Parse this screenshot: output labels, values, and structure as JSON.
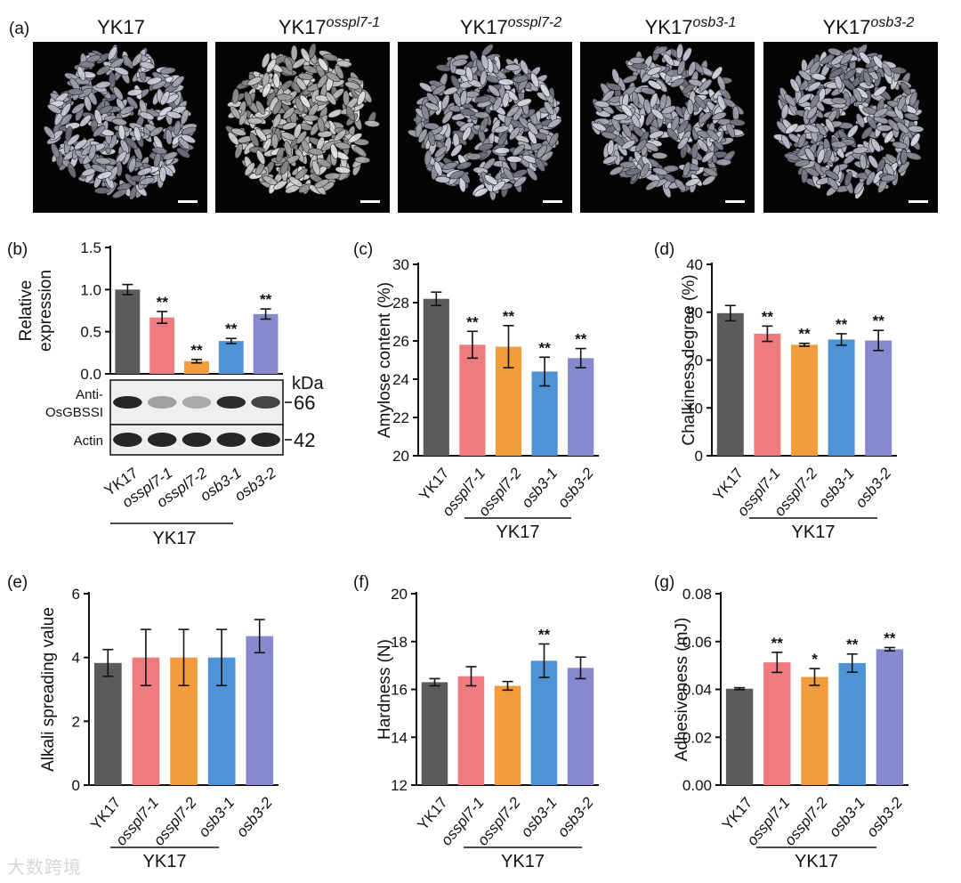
{
  "panel_a": {
    "label": "(a)",
    "scale_bar_color": "#ffffff",
    "images": [
      {
        "title": "YK17",
        "superscript": ""
      },
      {
        "title": "YK17",
        "superscript": "osspl7-1"
      },
      {
        "title": "YK17",
        "superscript": "osspl7-2"
      },
      {
        "title": "YK17",
        "superscript": "osb3-1"
      },
      {
        "title": "YK17",
        "superscript": "osb3-2"
      }
    ]
  },
  "colors": {
    "YK17": "#5b5b5b",
    "osspl7-1": "#ee7b80",
    "osspl7-2": "#f39c3e",
    "osb3-1": "#4f93d7",
    "osb3-2": "#8789cf"
  },
  "group_label": "YK17",
  "western": {
    "kda_label": "kDa",
    "rows": [
      {
        "label": "Anti-\nOsGBSSI",
        "size": "66",
        "intensity": [
          0.95,
          0.35,
          0.3,
          0.92,
          0.8
        ]
      },
      {
        "label": "Actin",
        "size": "42",
        "intensity": [
          0.95,
          0.95,
          0.95,
          0.95,
          0.95
        ]
      }
    ]
  },
  "chart_data": [
    {
      "id": "b",
      "label": "(b)",
      "type": "bar",
      "categories": [
        "YK17",
        "osspl7-1",
        "osspl7-2",
        "osb3-1",
        "osb3-2"
      ],
      "values": [
        1.0,
        0.67,
        0.15,
        0.39,
        0.71
      ],
      "errors": [
        0.06,
        0.07,
        0.02,
        0.03,
        0.06
      ],
      "significance": [
        "",
        "**",
        "**",
        "**",
        "**"
      ],
      "ylabel": "Relative\nexpression",
      "ylim": [
        0,
        1.5
      ],
      "yticks": [
        0.0,
        0.5,
        1.0,
        1.5
      ],
      "yticklabels": [
        "0.0",
        "0.5",
        "1.0",
        "1.5"
      ]
    },
    {
      "id": "c",
      "label": "(c)",
      "type": "bar",
      "categories": [
        "YK17",
        "osspl7-1",
        "osspl7-2",
        "osb3-1",
        "osb3-2"
      ],
      "values": [
        28.2,
        25.8,
        25.7,
        24.4,
        25.1
      ],
      "errors": [
        0.35,
        0.7,
        1.1,
        0.75,
        0.5
      ],
      "significance": [
        "",
        "**",
        "**",
        "**",
        "**"
      ],
      "ylabel": "Amylose content (%)",
      "ylim": [
        20,
        30
      ],
      "yticks": [
        20,
        22,
        24,
        26,
        28,
        30
      ],
      "yticklabels": [
        "20",
        "22",
        "24",
        "26",
        "28",
        "30"
      ]
    },
    {
      "id": "d",
      "label": "(d)",
      "type": "bar",
      "categories": [
        "YK17",
        "osspl7-1",
        "osspl7-2",
        "osb3-1",
        "osb3-2"
      ],
      "values": [
        29.8,
        25.5,
        23.2,
        24.3,
        24.1
      ],
      "errors": [
        1.6,
        1.6,
        0.3,
        1.2,
        2.1
      ],
      "significance": [
        "",
        "**",
        "**",
        "**",
        "**"
      ],
      "ylabel": "Chalkiness degree (%)",
      "ylim": [
        0,
        40
      ],
      "yticks": [
        0,
        10,
        20,
        30,
        40
      ],
      "yticklabels": [
        "0",
        "10",
        "20",
        "30",
        "40"
      ]
    },
    {
      "id": "e",
      "label": "(e)",
      "type": "bar",
      "categories": [
        "YK17",
        "osspl7-1",
        "osspl7-2",
        "osb3-1",
        "osb3-2"
      ],
      "values": [
        3.83,
        4.0,
        4.0,
        4.0,
        4.67
      ],
      "errors": [
        0.42,
        0.88,
        0.88,
        0.88,
        0.52
      ],
      "significance": [
        "",
        "",
        "",
        "",
        ""
      ],
      "ylabel": "Alkali spreading value",
      "ylim": [
        0,
        6
      ],
      "yticks": [
        0,
        2,
        4,
        6
      ],
      "yticklabels": [
        "0",
        "2",
        "4",
        "6"
      ]
    },
    {
      "id": "f",
      "label": "(f)",
      "type": "bar",
      "categories": [
        "YK17",
        "osspl7-1",
        "osspl7-2",
        "osb3-1",
        "osb3-2"
      ],
      "values": [
        16.3,
        16.55,
        16.15,
        17.2,
        16.9
      ],
      "errors": [
        0.15,
        0.4,
        0.18,
        0.7,
        0.45
      ],
      "significance": [
        "",
        "",
        "",
        "**",
        ""
      ],
      "ylabel": "Hardness (N)",
      "ylim": [
        12,
        20
      ],
      "yticks": [
        12,
        14,
        16,
        18,
        20
      ],
      "yticklabels": [
        "12",
        "14",
        "16",
        "18",
        "20"
      ]
    },
    {
      "id": "g",
      "label": "(g)",
      "type": "bar",
      "categories": [
        "YK17",
        "osspl7-1",
        "osspl7-2",
        "osb3-1",
        "osb3-2"
      ],
      "values": [
        0.0403,
        0.0513,
        0.0452,
        0.051,
        0.0568
      ],
      "errors": [
        0.0004,
        0.0042,
        0.0035,
        0.0038,
        0.0007
      ],
      "significance": [
        "",
        "**",
        "*",
        "**",
        "**"
      ],
      "ylabel": "Adhesiveness (mJ)",
      "ylim": [
        0.0,
        0.08
      ],
      "yticks": [
        0.0,
        0.02,
        0.04,
        0.06,
        0.08
      ],
      "yticklabels": [
        "0.00",
        "0.02",
        "0.04",
        "0.06",
        "0.08"
      ]
    }
  ],
  "watermark": "大数跨境"
}
